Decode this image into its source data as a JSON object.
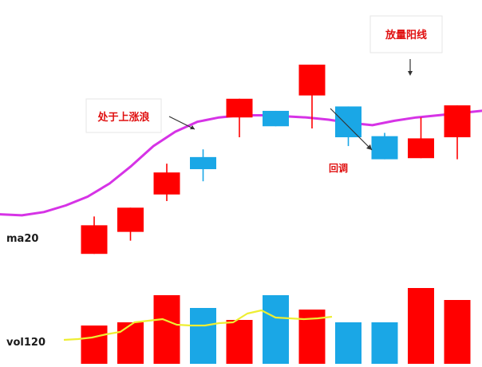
{
  "chart_data": [
    {
      "type": "candlestick",
      "title": "",
      "indicator_label": "ma20",
      "colors": {
        "up": "#ff0000",
        "down": "#1aa7e6",
        "ma_line": "#d633e6"
      },
      "candles": [
        {
          "open": 10,
          "close": 36,
          "high": 44,
          "low": 10,
          "dir": "up"
        },
        {
          "open": 30,
          "close": 52,
          "high": 52,
          "low": 22,
          "dir": "up"
        },
        {
          "open": 64,
          "close": 84,
          "high": 92,
          "low": 58,
          "dir": "up"
        },
        {
          "open": 98,
          "close": 87,
          "high": 105,
          "low": 76,
          "dir": "down"
        },
        {
          "open": 134,
          "close": 151,
          "high": 151,
          "low": 116,
          "dir": "up"
        },
        {
          "open": 140,
          "close": 126,
          "high": 140,
          "low": 126,
          "dir": "down"
        },
        {
          "open": 154,
          "close": 182,
          "high": 182,
          "low": 124,
          "dir": "up"
        },
        {
          "open": 144,
          "close": 116,
          "high": 144,
          "low": 108,
          "dir": "down"
        },
        {
          "open": 117,
          "close": 96,
          "high": 120,
          "low": 96,
          "dir": "down"
        },
        {
          "open": 97,
          "close": 115,
          "high": 134,
          "low": 97,
          "dir": "up"
        },
        {
          "open": 116,
          "close": 145,
          "high": 145,
          "low": 96,
          "dir": "up"
        }
      ],
      "ma20": [
        46,
        45,
        48,
        54,
        62,
        74,
        90,
        108,
        121,
        130,
        134,
        136,
        136,
        135,
        134,
        132,
        129,
        127,
        131,
        134,
        136,
        138,
        140
      ],
      "ylim": [
        0,
        190
      ]
    },
    {
      "type": "bar",
      "title": "",
      "indicator_label": "vol120",
      "colors": {
        "up": "#ff0000",
        "down": "#1aa7e6",
        "ma_line": "#eeee33"
      },
      "values": [
        {
          "v": 48,
          "dir": "up"
        },
        {
          "v": 52,
          "dir": "up"
        },
        {
          "v": 86,
          "dir": "up"
        },
        {
          "v": 70,
          "dir": "down"
        },
        {
          "v": 55,
          "dir": "up"
        },
        {
          "v": 86,
          "dir": "down"
        },
        {
          "v": 68,
          "dir": "up"
        },
        {
          "v": 52,
          "dir": "down"
        },
        {
          "v": 52,
          "dir": "down"
        },
        {
          "v": 95,
          "dir": "up"
        },
        {
          "v": 80,
          "dir": "up"
        }
      ],
      "ma_line": [
        30,
        31,
        33,
        37,
        40,
        52,
        54,
        56,
        49,
        48,
        48,
        51,
        52,
        63,
        67,
        58,
        57,
        56,
        57,
        59
      ],
      "ylim": [
        0,
        100
      ]
    }
  ],
  "annotations": {
    "rising_wave": "处于上涨浪",
    "pullback": "回调",
    "big_bullish": "放量阳线"
  }
}
